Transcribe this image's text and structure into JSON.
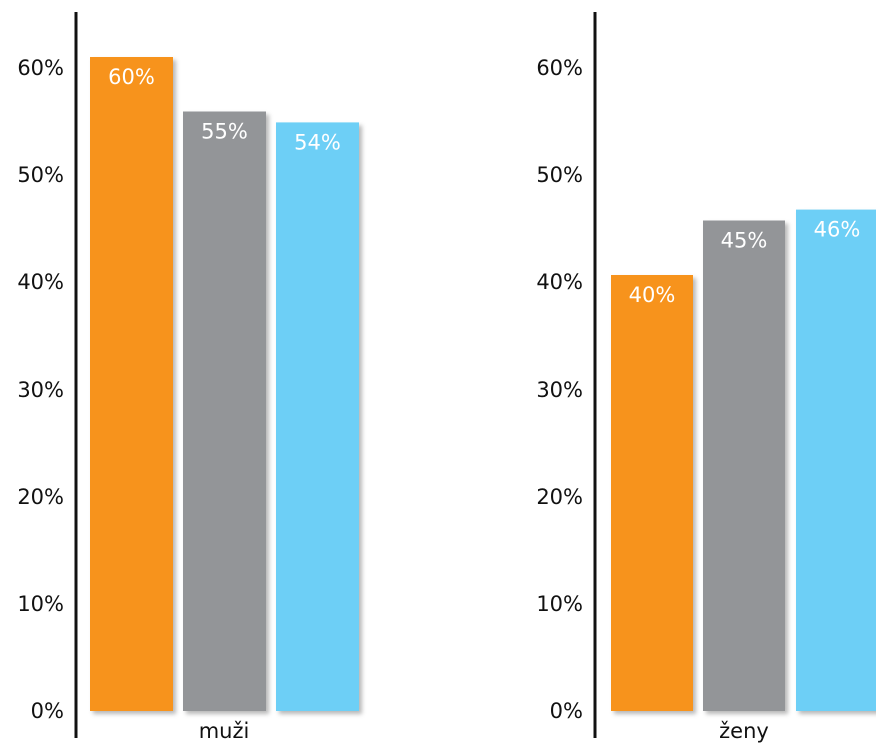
{
  "chart_data": [
    {
      "type": "bar",
      "categories": [
        "muži"
      ],
      "series": [
        {
          "values": [
            60
          ],
          "color": "#f7931e"
        },
        {
          "values": [
            55
          ],
          "color": "#939598"
        },
        {
          "values": [
            54
          ],
          "color": "#6dcff6"
        }
      ],
      "data_labels": [
        "60%",
        "55%",
        "54%"
      ],
      "yticks": [
        "0%",
        "10%",
        "20%",
        "30%",
        "40%",
        "50%",
        "60%"
      ],
      "ylim": [
        0,
        60
      ],
      "grid": false,
      "legend": "none"
    },
    {
      "type": "bar",
      "categories": [
        "ženy"
      ],
      "series": [
        {
          "values": [
            40
          ],
          "color": "#f7931e"
        },
        {
          "values": [
            45
          ],
          "color": "#939598"
        },
        {
          "values": [
            46
          ],
          "color": "#6dcff6"
        }
      ],
      "data_labels": [
        "40%",
        "45%",
        "46%"
      ],
      "yticks": [
        "0%",
        "10%",
        "20%",
        "30%",
        "40%",
        "50%",
        "60%"
      ],
      "ylim": [
        0,
        60
      ],
      "grid": false,
      "legend": "none"
    }
  ]
}
